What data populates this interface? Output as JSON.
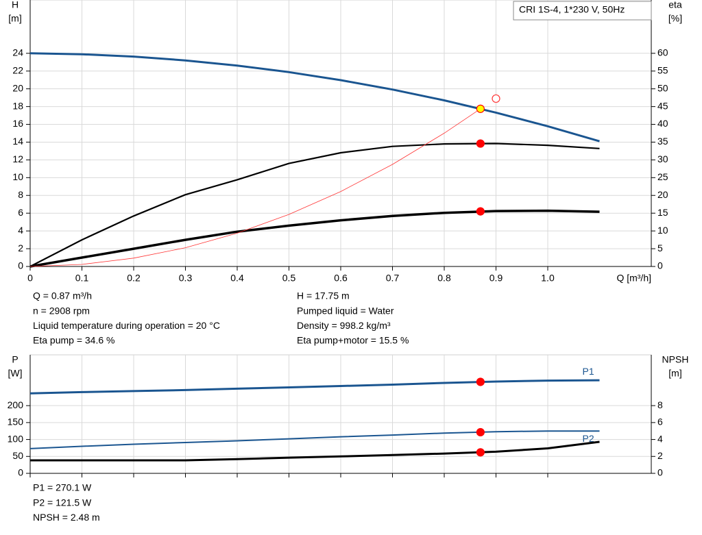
{
  "chart_data": [
    {
      "type": "line",
      "title": "CRI 1S-4, 1*230 V, 50Hz",
      "ylabel": [
        "H",
        "[m]"
      ],
      "y2label": [
        "eta",
        "[%]"
      ],
      "xlabel": "Q [m³/h]",
      "xlim": [
        0,
        1.2
      ],
      "ylim": [
        0,
        30
      ],
      "y2lim": [
        0,
        75
      ],
      "xticks": [
        0,
        0.1,
        0.2,
        0.3,
        0.4,
        0.5,
        0.6,
        0.7,
        0.8,
        0.9,
        {
          "value": 1,
          "label": "1.0"
        }
      ],
      "yticks": [
        0,
        2,
        4,
        6,
        8,
        10,
        12,
        14,
        16,
        18,
        20,
        22,
        24
      ],
      "y2ticks": [
        0,
        5,
        10,
        15,
        20,
        25,
        30,
        35,
        40,
        45,
        50,
        55,
        60
      ],
      "grid": true,
      "x": [
        0,
        0.1,
        0.2,
        0.3,
        0.4,
        0.5,
        0.6,
        0.7,
        0.8,
        0.9,
        1.0,
        1.1
      ],
      "series": [
        {
          "color": "#1a5590",
          "width": 3,
          "values": [
            24,
            23.89,
            23.63,
            23.2,
            22.62,
            21.88,
            20.98,
            19.92,
            18.7,
            17.32,
            15.79,
            14.1
          ]
        },
        {
          "color": "#000000",
          "width": 2.2,
          "axis": "y2",
          "values": [
            0,
            7.5,
            14.2,
            20.2,
            24.4,
            29,
            32,
            33.8,
            34.5,
            34.6,
            34.1,
            33.2
          ]
        },
        {
          "color": "#000000",
          "width": 3.5,
          "axis": "y2",
          "values": [
            0,
            2.5,
            5,
            7.5,
            9.8,
            11.5,
            13,
            14.2,
            15.1,
            15.6,
            15.7,
            15.4
          ]
        },
        {
          "color": "#ff3333",
          "width": 0.8,
          "x": [
            0,
            0.1,
            0.2,
            0.3,
            0.4,
            0.5,
            0.6,
            0.7,
            0.8,
            0.87
          ],
          "values": [
            0,
            0.23,
            0.94,
            2.11,
            3.75,
            5.86,
            8.44,
            11.49,
            15.01,
            17.75
          ]
        }
      ],
      "points": [
        {
          "x": 0.87,
          "y": 17.75,
          "fill": "#ffff00",
          "stroke": "#ff0000"
        },
        {
          "x": 0.87,
          "y": 34.6,
          "axis": "y2",
          "fill": "#ff0000",
          "stroke": "#ff0000"
        },
        {
          "x": 0.87,
          "y": 15.5,
          "axis": "y2",
          "fill": "#ff0000",
          "stroke": "#ff0000"
        },
        {
          "x": 0.9,
          "y": 18.9,
          "fill": "#ffffff",
          "stroke": "#ff3333"
        }
      ],
      "notes": [
        [
          "Q = 0.87 m³/h",
          "n = 2908 rpm",
          "Liquid temperature during operation = 20 °C",
          "Eta pump = 34.6 %"
        ],
        [
          "H = 17.75 m",
          "Pumped liquid = Water",
          "Density = 998.2 kg/m³",
          "Eta pump+motor = 15.5 %"
        ]
      ]
    },
    {
      "type": "line",
      "ylabel": [
        "P",
        "[W]"
      ],
      "y2label": [
        "NPSH",
        "[m]"
      ],
      "xlim": [
        0,
        1.2
      ],
      "ylim": [
        0,
        350
      ],
      "y2lim": [
        0,
        14
      ],
      "xticks": [
        0,
        0.1,
        0.2,
        0.3,
        0.4,
        0.5,
        0.6,
        0.7,
        0.8,
        0.9,
        1.0
      ],
      "show_xtick_labels": false,
      "yticks": [
        0,
        50,
        100,
        150,
        200
      ],
      "y2ticks": [
        0,
        2,
        4,
        6,
        8
      ],
      "grid": true,
      "x": [
        0,
        0.1,
        0.2,
        0.3,
        0.4,
        0.5,
        0.6,
        0.7,
        0.8,
        0.9,
        1.0,
        1.1
      ],
      "series": [
        {
          "name": "P1",
          "color": "#1a5590",
          "width": 3,
          "values": [
            236,
            240,
            243,
            246,
            250,
            254,
            258,
            262,
            267,
            271,
            274,
            275
          ]
        },
        {
          "name": "P2",
          "color": "#1a5590",
          "width": 2,
          "values": [
            73,
            80,
            86,
            91,
            96,
            102,
            108,
            113,
            119,
            123,
            125,
            125
          ]
        },
        {
          "color": "#000000",
          "width": 3,
          "axis": "y2",
          "values": [
            1.54,
            1.54,
            1.54,
            1.54,
            1.68,
            1.85,
            2.0,
            2.17,
            2.34,
            2.56,
            2.95,
            3.72
          ]
        }
      ],
      "points": [
        {
          "x": 0.87,
          "y": 270.1,
          "fill": "#ff0000",
          "stroke": "#ff0000"
        },
        {
          "x": 0.87,
          "y": 121.5,
          "fill": "#ff0000",
          "stroke": "#ff0000"
        },
        {
          "x": 0.87,
          "y": 2.48,
          "axis": "y2",
          "fill": "#ff0000",
          "stroke": "#ff0000"
        }
      ],
      "notes": [
        [
          "P1 = 270.1 W",
          "P2 = 121.5 W",
          "NPSH = 2.48 m"
        ]
      ]
    }
  ]
}
